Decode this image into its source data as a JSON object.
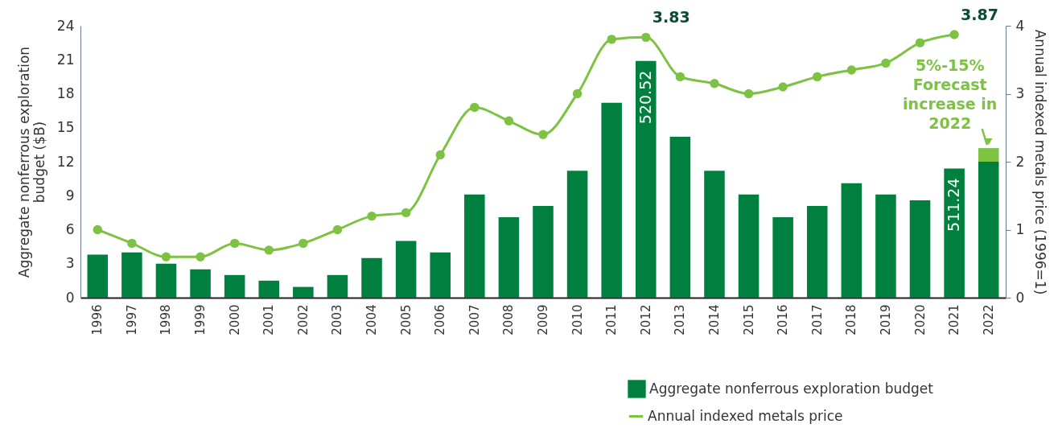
{
  "chart_data": {
    "type": "bar",
    "xlabel": null,
    "ylabel": "Aggregate nonferrous exploration budget ($B)",
    "y2label": "Annual indexed metals price (1996=1)",
    "categories": [
      "1996",
      "1997",
      "1998",
      "1999",
      "2000",
      "2001",
      "2002",
      "2003",
      "2004",
      "2005",
      "2006",
      "2007",
      "2008",
      "2009",
      "2010",
      "2011",
      "2012",
      "2013",
      "2014",
      "2015",
      "2016",
      "2017",
      "2018",
      "2019",
      "2020",
      "2021",
      "2022"
    ],
    "stacked": true,
    "ylim": [
      0,
      24
    ],
    "yticks": [
      0,
      3,
      6,
      9,
      12,
      15,
      18,
      21,
      24
    ],
    "y2lim": [
      0,
      4
    ],
    "y2ticks": [
      0,
      1,
      2,
      3,
      4
    ],
    "legend": "bottom right",
    "series": [
      {
        "name": "Aggregate nonferrous exploration budget",
        "color": "#00803f",
        "values": [
          3.8,
          4.0,
          3.0,
          2.5,
          2.0,
          1.5,
          0.95,
          2.0,
          3.5,
          5.0,
          4.0,
          9.1,
          7.1,
          8.1,
          11.2,
          17.2,
          20.9,
          14.2,
          11.2,
          9.1,
          7.1,
          8.1,
          10.1,
          9.1,
          8.6,
          11.4,
          12.0
        ]
      },
      {
        "color": "#7dc242",
        "values": [
          null,
          null,
          null,
          null,
          null,
          null,
          null,
          null,
          null,
          null,
          null,
          null,
          null,
          null,
          null,
          null,
          null,
          null,
          null,
          null,
          null,
          null,
          null,
          null,
          null,
          null,
          1.2
        ]
      },
      {
        "name": "Annual indexed metals price",
        "type": "line",
        "axis": "y2",
        "marker": "circle",
        "color": "#7dc242",
        "values": [
          1.0,
          0.8,
          0.6,
          0.6,
          0.8,
          0.7,
          0.8,
          1.0,
          1.2,
          1.25,
          2.1,
          2.8,
          2.6,
          2.4,
          3.0,
          3.8,
          3.83,
          3.25,
          3.15,
          3.0,
          3.1,
          3.25,
          3.35,
          3.45,
          3.75,
          3.87,
          null
        ],
        "value_labels": [
          null,
          null,
          null,
          null,
          null,
          null,
          null,
          null,
          null,
          null,
          null,
          null,
          null,
          null,
          null,
          null,
          "3.83",
          null,
          null,
          null,
          null,
          null,
          null,
          null,
          null,
          "3.87",
          null
        ]
      }
    ],
    "annotations": [
      {
        "text": "520.52",
        "x": "2012",
        "y": 20.9
      },
      {
        "text": "511.24",
        "x": "2021",
        "y": 11.4
      },
      {
        "text": "5%-15% Forecast increase in 2022",
        "x": "2022",
        "y": 13.2
      }
    ]
  }
}
